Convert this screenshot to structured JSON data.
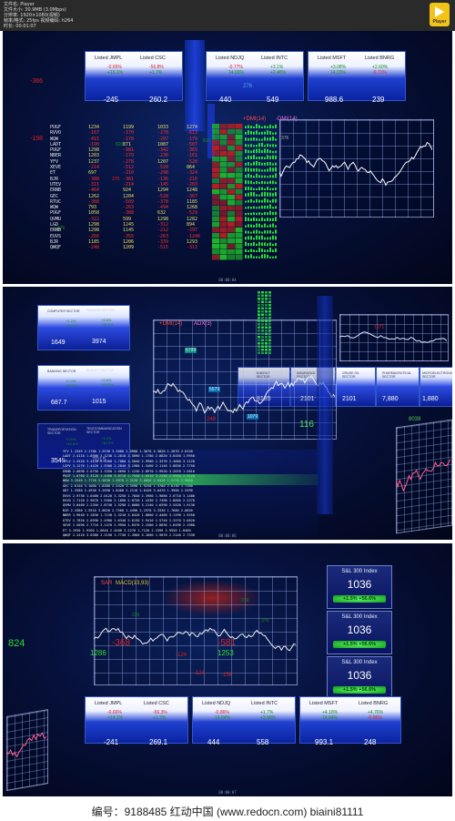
{
  "header": {
    "lines": [
      "文件名: Player",
      "文件大小: 30.9MB (3.0Mbps)",
      "分辨率: 1920×1080(视频)",
      "帧率/格式: 25fps  视频编码: h264",
      "时长: 00:01:07"
    ],
    "player_label": "Player",
    "accent": "#f2c417"
  },
  "panel1": {
    "timecode": "00:00:04",
    "tickers": [
      {
        "names": [
          "Listed JMPL",
          "Listed CSC"
        ],
        "pct1": [
          "-0.65%",
          "+15.1%"
        ],
        "pct2": [
          "-56.8%",
          "+1.7%"
        ],
        "values": [
          "-245",
          "260.2"
        ]
      },
      {
        "names": [
          "Listed NDJQ",
          "Listed INTC"
        ],
        "pct1": [
          "-0.77%",
          "14.03%"
        ],
        "pct2": [
          "+3.1%",
          "+2.48%"
        ],
        "values": [
          "440",
          "549"
        ]
      },
      {
        "names": [
          "Listed MSFT",
          "Listed BNRG"
        ],
        "pct1": [
          "+3.08%",
          "14.03%"
        ],
        "pct2": [
          "+2.60%",
          "-0.71%"
        ],
        "values": [
          "988.6",
          "239"
        ]
      }
    ],
    "floats": [
      "-366",
      "-198",
      "276",
      "376",
      "820",
      "810",
      "370",
      "676"
    ],
    "table": {
      "names": [
        "PUGF",
        "RVVO",
        "WQW",
        "LADT",
        "PUGF",
        "NBER",
        "YFV",
        "XEVE",
        "ET",
        "BJR",
        "UTEV",
        "ERNB",
        "GEC",
        "RTUC",
        "WQW",
        "PUGF",
        "QVMU",
        "LGD",
        "ERNB",
        "EUVS",
        "BJR",
        "QWQF"
      ],
      "c1": [
        "1234",
        "-167",
        "-415",
        "-190",
        "1298",
        "1203",
        "1237",
        "-214",
        "697",
        "-388",
        "-311",
        "-464",
        "1262",
        "-388",
        "793",
        "1058",
        "-322",
        "1298",
        "1298",
        "-266",
        "1185",
        "-248"
      ],
      "c2": [
        "1199",
        "-170",
        "-178",
        "871",
        "-981",
        "-179",
        "-278",
        "-512",
        "-210",
        "-381",
        "-214",
        "924",
        "1204",
        "-509",
        "-263",
        "-388",
        "599",
        "1245",
        "1145",
        "-355",
        "1206",
        "1209"
      ],
      "c3": [
        "1033",
        "-278",
        "-297",
        "1087",
        "-342",
        "-230",
        "1207",
        "-528",
        "-298",
        "-136",
        "-145",
        "1294",
        "-528",
        "-378",
        "-494",
        "632",
        "1298",
        "-312",
        "-212",
        "-263",
        "-339",
        "-515"
      ],
      "c4": [
        "1274",
        "-613",
        "-179",
        "-507",
        "-365",
        "-161",
        "-528",
        "864",
        "-324",
        "-216",
        "-283",
        "1248",
        "-367",
        "1185",
        "1268",
        "-529",
        "1282",
        "894",
        "-297",
        "-1246",
        "1293",
        "-311"
      ]
    },
    "chart_labels": [
      "+DMI(14)",
      "-DMI(14)"
    ]
  },
  "panel2": {
    "timecode": "00:00:06",
    "boxes": [
      {
        "title": "COMPUTER SECTOR",
        "pct1": "+1.2%",
        "pct2": "+16.5%",
        "value": "1649"
      },
      {
        "title": "FINANCE SECTOR",
        "pct1": "+3.5%",
        "pct2": "+16.5%",
        "value": "3974"
      },
      {
        "title": "BANKING SECTOR",
        "pct1": "+2.4%",
        "pct2": "+16.5%",
        "value": "687.7"
      },
      {
        "title": "BUDGET SECTOR",
        "pct1": "+2.6%",
        "pct2": "+16.5%",
        "value": "1015"
      },
      {
        "title": "TRANSPORTATION SECTOR",
        "pct1": "+3.9%",
        "pct2": "+16.5%",
        "value": "3549"
      },
      {
        "title": "TELECOMMUNICATION SECTOR",
        "pct1": "+4.4%",
        "pct2": "+16.5%",
        "value": "7015"
      }
    ],
    "right_boxes": [
      {
        "title": "ENERGY SECTOR",
        "value": "8185"
      },
      {
        "title": "INSURANCE SECTOR",
        "value": "2101"
      },
      {
        "title": "CRUDE OIL SECTOR",
        "value": "2101"
      },
      {
        "title": "PHARMACEUTICAL SECTOR",
        "value": "7,880"
      },
      {
        "title": "MICROELECTRONICS SECTOR",
        "value": "1,880"
      }
    ],
    "chart_labels": [
      "+DMI(14)",
      "ADX(3)"
    ],
    "floats": [
      "116",
      "6799",
      "5579",
      "1079",
      "8039",
      "249",
      "1071"
    ],
    "matrix_rows": [
      "YFV   1.2349  2.1780  1.5530  3.5060  2.0980  1.3670  4.3020  1.2870  2.0150",
      "LADT  2.4110  1.8900  3.1230  1.2010  2.5090  1.1780  2.8820  3.0450  1.9950",
      "YPLV  1.5520  3.4110  2.1560  1.7080  1.5040  2.9980  1.3370  2.4660  3.1120",
      "LGPV  3.1270  1.4420  1.9300  2.2840  3.1980  1.5460  2.1140  1.8830  2.7750",
      "ERNB  2.0890  2.6750  3.3350  1.6690  2.1230  2.8970  1.9920  3.2070  1.5810",
      "PUGF  1.8760  2.3120  1.4490  3.0710  2.7540  1.6310  3.2280  2.0940  2.4120",
      "WQW   3.2540  1.7720  2.5830  1.9970  1.3120  3.0850  2.6420  1.5170  2.9060",
      "GEC   2.6150  3.1060  1.8380  2.4420  3.3590  1.9250  1.4780  2.8130  1.7260",
      "ADT   1.3380  2.4930  3.2690  1.8460  2.2110  2.6420  3.0470  1.3960  2.5390",
      "EUVS  2.9730  1.6480  2.0120  3.3250  1.7840  2.3960  1.9860  2.6710  3.1480",
      "RVVO  1.7120  2.9670  1.5560  2.1890  2.8720  1.4330  2.7490  1.8850  2.2270",
      "QVMU  3.0460  2.2350  2.8740  1.5290  2.0680  3.2140  1.6590  2.5420  1.9130",
      "BJR   2.3380  1.5910  3.0820  2.7560  1.4490  2.1970  3.3330  1.7680  2.6850",
      "NBER  1.9640  3.2830  1.7150  2.3210  3.0420  1.8860  2.4460  3.1190  1.5550",
      "UTEV  2.7820  2.0590  2.4980  1.6340  2.6130  2.9410  1.5740  2.3270  3.0620",
      "XEVE  1.5090  2.7710  3.1470  2.9950  1.8370  2.2580  2.8830  1.6490  2.1980",
      "ET    3.1930  1.9260  1.6640  2.4480  3.2270  1.7120  2.1590  2.9550  1.8460",
      "QWQF  2.2410  3.0380  2.3190  1.7730  2.4960  3.1660  1.9070  2.2140  2.7330"
    ]
  },
  "panel3": {
    "timecode": "00:00:07",
    "index_panels": [
      {
        "title": "S&L 300 Index",
        "value": "1036",
        "change": "+1.5%   +56.6%"
      },
      {
        "title": "S&L 300 Index",
        "value": "1036",
        "change": "+1.5%   +56.6%"
      },
      {
        "title": "S&L 300 Index",
        "value": "1036",
        "change": "+1.5%   +56.6%"
      }
    ],
    "chart_labels": [
      "SAR",
      "MACD(13,93)"
    ],
    "floats": [
      "824",
      "1286",
      "1253",
      "-368",
      "-124",
      "-581",
      "-124",
      "-154",
      "226",
      "276",
      "376"
    ],
    "tickers": [
      {
        "names": [
          "Listed JMPL",
          "Listed CSC"
        ],
        "pct1": [
          "-0.66%",
          "+14.1%"
        ],
        "pct2": [
          "-56.3%",
          "+1.7%"
        ],
        "values": [
          "-241",
          "269.1"
        ]
      },
      {
        "names": [
          "Listed NDJQ",
          "Listed INTC"
        ],
        "pct1": [
          "-0.86%",
          "14.64%"
        ],
        "pct2": [
          "+1.7%",
          "+3.58%"
        ],
        "values": [
          "444",
          "558"
        ]
      },
      {
        "names": [
          "Listed MSFT",
          "Listed BNRG"
        ],
        "pct1": [
          "+4.18%",
          "14.64%"
        ],
        "pct2": [
          "+4.76%",
          "-0.96%"
        ],
        "values": [
          "993.1",
          "248"
        ]
      }
    ]
  },
  "footer": {
    "text": "编号：9188485   红动中国 (www.redocn.com)   biaini81111"
  }
}
